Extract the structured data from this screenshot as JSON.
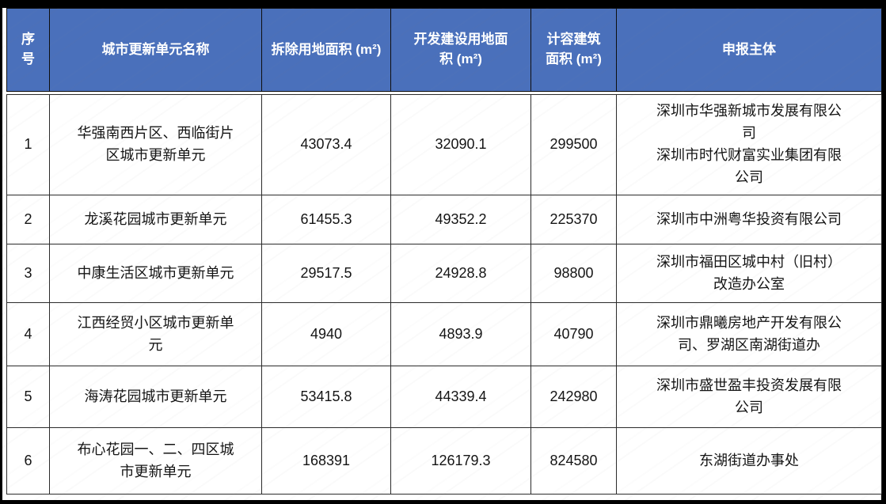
{
  "table": {
    "title_semantic": "深圳城市更新单元一览表",
    "headers": [
      "序号",
      "城市更新单元名称",
      "拆除用地面积 (m²)",
      "开发建设用地面积 (m²)",
      "计容建筑面积 (m²)",
      "申报主体"
    ],
    "rows": [
      {
        "num": "1",
        "name": "华强南西片区、西临街片区城市更新单元",
        "demolition_area": "43073.4",
        "development_area": "32090.1",
        "floor_area": "299500",
        "applicant": "深圳市华强新城市发展有限公司\n深圳市时代财富实业集团有限公司"
      },
      {
        "num": "2",
        "name": "龙溪花园城市更新单元",
        "demolition_area": "61455.3",
        "development_area": "49352.2",
        "floor_area": "225370",
        "applicant": "深圳市中洲粤华投资有限公司"
      },
      {
        "num": "3",
        "name": "中康生活区城市更新单元",
        "demolition_area": "29517.5",
        "development_area": "24928.8",
        "floor_area": "98800",
        "applicant": "深圳市福田区城中村（旧村）改造办公室"
      },
      {
        "num": "4",
        "name": "江西经贸小区城市更新单元",
        "demolition_area": "4940",
        "development_area": "4893.9",
        "floor_area": "40790",
        "applicant": "深圳市鼎曦房地产开发有限公司、罗湖区南湖街道办"
      },
      {
        "num": "5",
        "name": "海涛花园城市更新单元",
        "demolition_area": "53415.8",
        "development_area": "44339.4",
        "floor_area": "242980",
        "applicant": "深圳市盛世盈丰投资发展有限公司"
      },
      {
        "num": "6",
        "name": "布心花园一、二、四区城市更新单元",
        "demolition_area": "168391",
        "development_area": "126179.3",
        "floor_area": "824580",
        "applicant": "东湖街道办事处"
      }
    ]
  },
  "colors": {
    "header_bg": "#4a70bb",
    "header_text": "#ffffff",
    "grid_line": "#2b2b2b",
    "frame": "#000000"
  }
}
